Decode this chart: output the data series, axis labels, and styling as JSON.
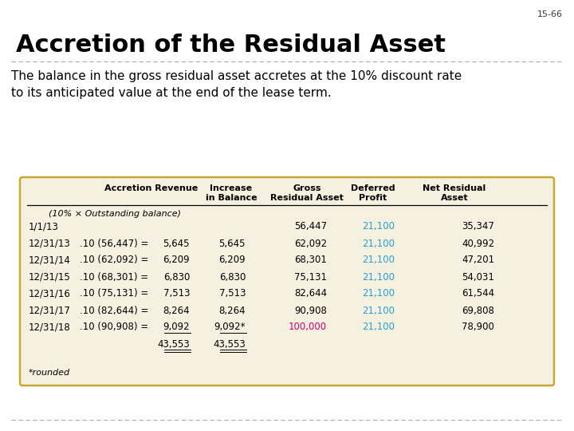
{
  "slide_number": "15-66",
  "title": "Accretion of the Residual Asset",
  "subtitle": "The balance in the gross residual asset accretes at the 10% discount rate\nto its anticipated value at the end of the lease term.",
  "bg_color": "#ffffff",
  "table_bg": "#f5f0e0",
  "table_border": "#c8a832",
  "subheader": "(10% × Outstanding balance)",
  "rows": [
    {
      "date": "1/1/13",
      "formula": "",
      "acc": "",
      "inc": "",
      "gross": "56,447",
      "def": "21,100",
      "net": "35,347",
      "gross_c": "#000000",
      "def_c": "#29a0d0"
    },
    {
      "date": "12/31/13",
      "formula": ".10 (56,447) =",
      "acc": "5,645",
      "inc": "5,645",
      "gross": "62,092",
      "def": "21,100",
      "net": "40,992",
      "gross_c": "#000000",
      "def_c": "#29a0d0"
    },
    {
      "date": "12/31/14",
      "formula": ".10 (62,092) =",
      "acc": "6,209",
      "inc": "6,209",
      "gross": "68,301",
      "def": "21,100",
      "net": "47,201",
      "gross_c": "#000000",
      "def_c": "#29a0d0"
    },
    {
      "date": "12/31/15",
      "formula": ".10 (68,301) =",
      "acc": "6,830",
      "inc": "6,830",
      "gross": "75,131",
      "def": "21,100",
      "net": "54,031",
      "gross_c": "#000000",
      "def_c": "#29a0d0"
    },
    {
      "date": "12/31/16",
      "formula": ".10 (75,131) =",
      "acc": "7,513",
      "inc": "7,513",
      "gross": "82,644",
      "def": "21,100",
      "net": "61,544",
      "gross_c": "#000000",
      "def_c": "#29a0d0"
    },
    {
      "date": "12/31/17",
      "formula": ".10 (82,644) =",
      "acc": "8,264",
      "inc": "8,264",
      "gross": "90,908",
      "def": "21,100",
      "net": "69,808",
      "gross_c": "#000000",
      "def_c": "#29a0d0"
    },
    {
      "date": "12/31/18",
      "formula": ".10 (90,908) =",
      "acc": "9,092",
      "inc": "9,092*",
      "gross": "100,000",
      "def": "21,100",
      "net": "78,900",
      "gross_c": "#d0006f",
      "def_c": "#29a0d0"
    }
  ],
  "total_acc": "43,553",
  "total_inc": "43,553",
  "footnote": "*rounded",
  "title_fontsize": 22,
  "subtitle_fontsize": 11,
  "table_fontsize": 8.5,
  "header_fontsize": 8,
  "slide_num_fontsize": 8
}
